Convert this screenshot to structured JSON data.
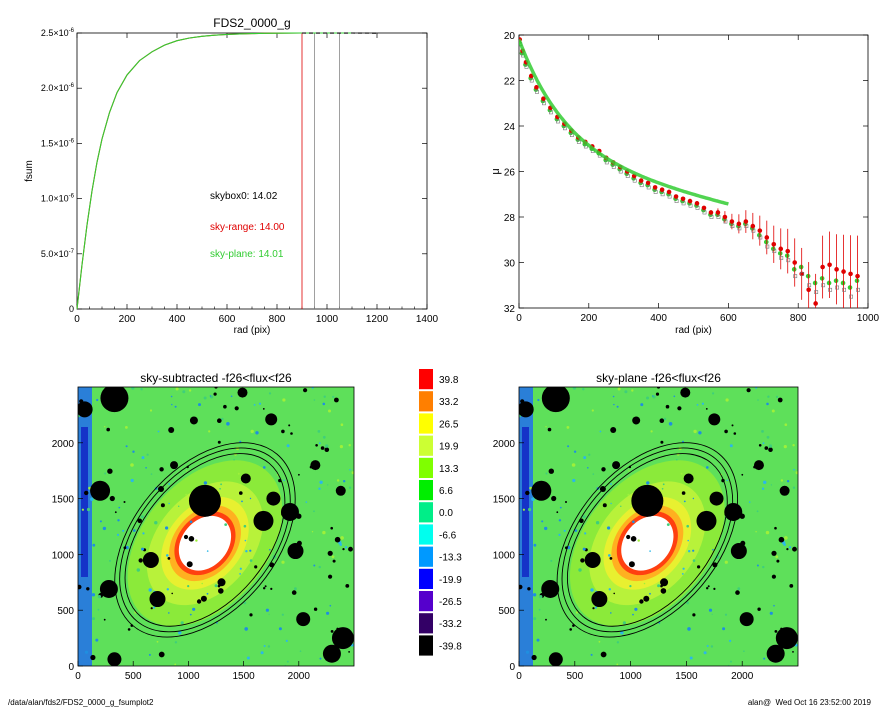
{
  "chart_data": [
    {
      "type": "line",
      "title": "FDS2_0000_g",
      "xlabel": "rad (pix)",
      "ylabel": "fsum",
      "xlim": [
        0,
        1400
      ],
      "ylim": [
        0,
        2.5e-06
      ],
      "xticks": [
        "0",
        "200",
        "400",
        "600",
        "800",
        "1000",
        "1200",
        "1400"
      ],
      "yticks": [
        {
          "value": 0,
          "mantissa": "0",
          "exp": ""
        },
        {
          "value": 5e-07,
          "mantissa": "5.0×10",
          "exp": "-7"
        },
        {
          "value": 1e-06,
          "mantissa": "1.0×10",
          "exp": "-6"
        },
        {
          "value": 1.5e-06,
          "mantissa": "1.5×10",
          "exp": "-6"
        },
        {
          "value": 2e-06,
          "mantissa": "2.0×10",
          "exp": "-6"
        },
        {
          "value": 2.5e-06,
          "mantissa": "2.5×10",
          "exp": "-6"
        }
      ],
      "x": [
        0,
        20,
        40,
        60,
        80,
        100,
        130,
        160,
        200,
        250,
        300,
        350,
        400,
        450,
        500,
        550,
        600,
        650,
        700,
        750,
        800,
        850,
        900,
        950,
        1000,
        1050,
        1100,
        1150,
        1200
      ],
      "series": [
        {
          "color": "#cc3300",
          "values": [
            0,
            4e-07,
            7.6e-07,
            1.07e-06,
            1.33e-06,
            1.54e-06,
            1.78e-06,
            1.96e-06,
            2.12e-06,
            2.25e-06,
            2.33e-06,
            2.39e-06,
            2.43e-06,
            2.455e-06,
            2.47e-06,
            2.48e-06,
            2.487e-06,
            2.492e-06,
            2.495e-06,
            2.497e-06,
            2.498e-06,
            2.499e-06,
            2.5e-06,
            null,
            null,
            null,
            null,
            null,
            null
          ]
        },
        {
          "color": "#33cc33",
          "values": [
            0,
            4e-07,
            7.6e-07,
            1.07e-06,
            1.33e-06,
            1.54e-06,
            1.78e-06,
            1.96e-06,
            2.12e-06,
            2.25e-06,
            2.33e-06,
            2.39e-06,
            2.43e-06,
            2.455e-06,
            2.47e-06,
            2.48e-06,
            2.487e-06,
            2.492e-06,
            2.495e-06,
            2.497e-06,
            2.498e-06,
            2.499e-06,
            2.5e-06,
            2.5e-06,
            2.5e-06,
            2.5e-06,
            2.5e-06,
            null,
            null
          ]
        },
        {
          "color": "#000000",
          "dashed": true,
          "values": [
            null,
            null,
            null,
            null,
            null,
            null,
            null,
            null,
            null,
            null,
            null,
            null,
            null,
            null,
            null,
            null,
            null,
            null,
            null,
            null,
            null,
            null,
            2.5e-06,
            2.499e-06,
            2.5e-06,
            2.499e-06,
            2.5e-06,
            2.499e-06,
            2.498e-06
          ]
        }
      ],
      "vlines": [
        {
          "x": 900,
          "color": "#e00000"
        },
        {
          "x": 950,
          "color": "#888888"
        },
        {
          "x": 1050,
          "color": "#888888"
        }
      ],
      "annotations": [
        {
          "text": "skybox0: 14.02",
          "color": "#000000"
        },
        {
          "text": "sky-range: 14.00",
          "color": "#e00000"
        },
        {
          "text": "sky-plane: 14.01",
          "color": "#33cc33"
        }
      ]
    },
    {
      "type": "scatter",
      "title": "",
      "xlabel": "rad (pix)",
      "ylabel": "μ",
      "xlim": [
        0,
        1000
      ],
      "ylim": [
        32,
        20
      ],
      "xticks": [
        "0",
        "200",
        "400",
        "600",
        "800",
        "1000"
      ],
      "yticks": [
        "20",
        "22",
        "24",
        "26",
        "28",
        "30",
        "32"
      ],
      "x": [
        2,
        10,
        20,
        35,
        50,
        70,
        90,
        110,
        130,
        150,
        170,
        190,
        210,
        230,
        250,
        270,
        290,
        310,
        330,
        350,
        370,
        390,
        410,
        430,
        450,
        470,
        490,
        510,
        530,
        550,
        570,
        590,
        610,
        630,
        650,
        670,
        690,
        710,
        730,
        750,
        770,
        790,
        810,
        830,
        850,
        870,
        890,
        910,
        930,
        950,
        970
      ],
      "series": [
        {
          "color": "#33cc33",
          "values": [
            20.3,
            20.8,
            21.3,
            21.9,
            22.4,
            22.9,
            23.3,
            23.7,
            24.0,
            24.3,
            24.6,
            24.8,
            25.0,
            25.2,
            25.5,
            25.7,
            25.9,
            26.1,
            26.3,
            26.5,
            26.6,
            26.8,
            26.9,
            27.0,
            27.2,
            27.3,
            27.4,
            27.5,
            27.7,
            27.9,
            27.9,
            28.1,
            28.3,
            28.4,
            28.3,
            28.5,
            28.8,
            29.1,
            29.4,
            29.6,
            29.7,
            30.3,
            30.2,
            30.6,
            30.9,
            30.7,
            30.9,
            30.8,
            30.9,
            31.1,
            30.8
          ]
        },
        {
          "color": "#e00000",
          "values": [
            20.2,
            20.7,
            21.2,
            21.8,
            22.3,
            22.8,
            23.2,
            23.6,
            23.9,
            24.2,
            24.5,
            24.7,
            24.9,
            25.1,
            25.4,
            25.6,
            25.8,
            26.0,
            26.2,
            26.4,
            26.5,
            26.7,
            26.8,
            26.9,
            27.1,
            27.2,
            27.3,
            27.4,
            27.6,
            27.8,
            27.8,
            28.0,
            28.2,
            28.3,
            28.2,
            28.4,
            28.6,
            28.9,
            29.2,
            29.4,
            29.5,
            30.0,
            30.5,
            31.2,
            31.8,
            30.2,
            30.1,
            30.3,
            30.4,
            30.5,
            30.6
          ]
        },
        {
          "color": "#777777",
          "values": [
            20.4,
            20.9,
            21.4,
            22.0,
            22.5,
            23.0,
            23.4,
            23.8,
            24.1,
            24.4,
            24.7,
            24.9,
            25.1,
            25.3,
            25.6,
            25.8,
            26.0,
            26.2,
            26.4,
            26.6,
            26.7,
            26.9,
            27.0,
            27.1,
            27.3,
            27.4,
            27.5,
            27.6,
            27.8,
            28.0,
            28.0,
            28.2,
            28.4,
            28.5,
            28.4,
            28.6,
            28.9,
            29.3,
            29.5,
            29.8,
            29.9,
            30.6,
            30.5,
            31.0,
            31.3,
            31.0,
            31.2,
            31.1,
            31.2,
            31.5,
            31.2
          ]
        }
      ]
    },
    {
      "type": "heatmap",
      "title": "sky-subtracted -f26<flux<f26",
      "xticks": [
        "0",
        "500",
        "1000",
        "1500",
        "2000"
      ],
      "yticks": [
        "0",
        "500",
        "1000",
        "1500",
        "2000"
      ],
      "xlim": [
        0,
        2500
      ],
      "ylim": [
        0,
        2500
      ]
    },
    {
      "type": "heatmap",
      "title": "sky-plane -f26<flux<f26",
      "xticks": [
        "0",
        "500",
        "1000",
        "1500",
        "2000"
      ],
      "yticks": [
        "0",
        "500",
        "1000",
        "1500",
        "2000"
      ],
      "xlim": [
        0,
        2500
      ],
      "ylim": [
        0,
        2500
      ]
    }
  ],
  "colorbar": {
    "levels": [
      {
        "label": "39.8",
        "color": "#ff0000"
      },
      {
        "label": "33.2",
        "color": "#ff7f00"
      },
      {
        "label": "26.5",
        "color": "#ffff00"
      },
      {
        "label": "19.9",
        "color": "#ccff33"
      },
      {
        "label": "13.3",
        "color": "#7fff00"
      },
      {
        "label": "6.6",
        "color": "#00ee00"
      },
      {
        "label": "0.0",
        "color": "#00ee88"
      },
      {
        "label": "-6.6",
        "color": "#00ffee"
      },
      {
        "label": "-13.3",
        "color": "#0099ff"
      },
      {
        "label": "-19.9",
        "color": "#0000ff"
      },
      {
        "label": "-26.5",
        "color": "#5500cc"
      },
      {
        "label": "-33.2",
        "color": "#330066"
      },
      {
        "label": "-39.8",
        "color": "#000000"
      }
    ]
  },
  "footer": {
    "left": "/data/alan/fds2/FDS2_0000_g_fsumplot2",
    "right": "alan@  Wed Oct 16 23:52:00 2019"
  }
}
